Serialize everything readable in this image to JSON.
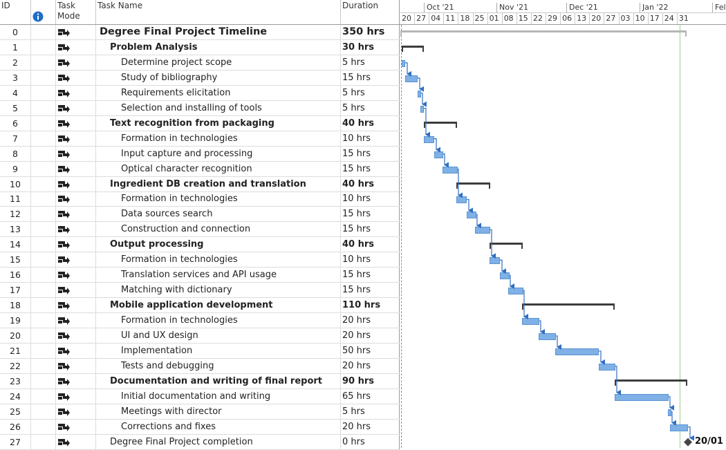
{
  "columns": {
    "id": "ID",
    "info_icon": "info-icon",
    "mode": "Task Mode",
    "name": "Task Name",
    "duration": "Duration"
  },
  "timescale": {
    "top": [
      "Oct '21",
      "Nov '21",
      "Dec '21",
      "Jan '22",
      "Fel"
    ],
    "bottom": [
      "20",
      "27",
      "04",
      "11",
      "18",
      "25",
      "01",
      "08",
      "15",
      "22",
      "29",
      "06",
      "13",
      "20",
      "27",
      "03",
      "10",
      "17",
      "24",
      "31"
    ]
  },
  "tasks": [
    {
      "id": "0",
      "name": "Degree Final Project Timeline",
      "duration": "350 hrs",
      "level": 0,
      "summary": true,
      "start": 0,
      "end": 414
    },
    {
      "id": "1",
      "name": "Problem Analysis",
      "duration": "30 hrs",
      "level": 1,
      "summary": true,
      "start": 2,
      "end": 34
    },
    {
      "id": "2",
      "name": "Determine project scope",
      "duration": "5 hrs",
      "level": 2,
      "summary": false,
      "start": 2,
      "end": 7
    },
    {
      "id": "3",
      "name": "Study of bibliography",
      "duration": "15 hrs",
      "level": 2,
      "summary": false,
      "start": 7,
      "end": 25
    },
    {
      "id": "4",
      "name": "Requirements elicitation",
      "duration": "5 hrs",
      "level": 2,
      "summary": false,
      "start": 25,
      "end": 30
    },
    {
      "id": "5",
      "name": "Selection and installing of tools",
      "duration": "5 hrs",
      "level": 2,
      "summary": false,
      "start": 29,
      "end": 34
    },
    {
      "id": "6",
      "name": "Text recognition from packaging",
      "duration": "40 hrs",
      "level": 1,
      "summary": true,
      "start": 34,
      "end": 82
    },
    {
      "id": "7",
      "name": "Formation in technologies",
      "duration": "10 hrs",
      "level": 2,
      "summary": false,
      "start": 34,
      "end": 49
    },
    {
      "id": "8",
      "name": "Input capture and processing",
      "duration": "15 hrs",
      "level": 2,
      "summary": false,
      "start": 49,
      "end": 62
    },
    {
      "id": "9",
      "name": "Optical character recognition",
      "duration": "15 hrs",
      "level": 2,
      "summary": false,
      "start": 61,
      "end": 83
    },
    {
      "id": "10",
      "name": "Ingredient DB creation and translation",
      "duration": "40 hrs",
      "level": 1,
      "summary": true,
      "start": 81,
      "end": 130
    },
    {
      "id": "11",
      "name": "Formation in technologies",
      "duration": "10 hrs",
      "level": 2,
      "summary": false,
      "start": 81,
      "end": 96
    },
    {
      "id": "12",
      "name": "Data sources search",
      "duration": "15 hrs",
      "level": 2,
      "summary": false,
      "start": 96,
      "end": 110
    },
    {
      "id": "13",
      "name": "Construction and connection",
      "duration": "15 hrs",
      "level": 2,
      "summary": false,
      "start": 108,
      "end": 130
    },
    {
      "id": "14",
      "name": "Output processing",
      "duration": "40 hrs",
      "level": 1,
      "summary": true,
      "start": 129,
      "end": 177
    },
    {
      "id": "15",
      "name": "Formation in technologies",
      "duration": "10 hrs",
      "level": 2,
      "summary": false,
      "start": 129,
      "end": 144
    },
    {
      "id": "16",
      "name": "Translation services and API usage",
      "duration": "15 hrs",
      "level": 2,
      "summary": false,
      "start": 144,
      "end": 158
    },
    {
      "id": "17",
      "name": "Matching with dictionary",
      "duration": "15 hrs",
      "level": 2,
      "summary": false,
      "start": 156,
      "end": 178
    },
    {
      "id": "18",
      "name": "Mobile application development",
      "duration": "110 hrs",
      "level": 1,
      "summary": true,
      "start": 176,
      "end": 310
    },
    {
      "id": "19",
      "name": "Formation in technologies",
      "duration": "20 hrs",
      "level": 2,
      "summary": false,
      "start": 176,
      "end": 201
    },
    {
      "id": "20",
      "name": "UI and UX design",
      "duration": "20 hrs",
      "level": 2,
      "summary": false,
      "start": 200,
      "end": 225
    },
    {
      "id": "21",
      "name": "Implementation",
      "duration": "50 hrs",
      "level": 2,
      "summary": false,
      "start": 224,
      "end": 287
    },
    {
      "id": "22",
      "name": "Tests and debugging",
      "duration": "20 hrs",
      "level": 2,
      "summary": false,
      "start": 287,
      "end": 311
    },
    {
      "id": "23",
      "name": "Documentation and writing of final report",
      "duration": "90 hrs",
      "level": 1,
      "summary": true,
      "start": 310,
      "end": 415
    },
    {
      "id": "24",
      "name": "Initial documentation and writing",
      "duration": "65 hrs",
      "level": 2,
      "summary": false,
      "start": 310,
      "end": 388
    },
    {
      "id": "25",
      "name": "Meetings with director",
      "duration": "5 hrs",
      "level": 2,
      "summary": false,
      "start": 387,
      "end": 392
    },
    {
      "id": "26",
      "name": "Corrections and fixes",
      "duration": "20 hrs",
      "level": 2,
      "summary": false,
      "start": 390,
      "end": 416
    },
    {
      "id": "27",
      "name": "Degree Final Project completion",
      "duration": "0 hrs",
      "level": 1,
      "summary": false,
      "milestone": true,
      "start": 416,
      "end": 416
    }
  ],
  "milestone_label": "20/01",
  "colors": {
    "bar": "#7fb0e6",
    "bar_border": "#5a93d2",
    "summary": "#3c3c3c",
    "link": "#2f6fc1",
    "status_line": "#9fcd8c"
  }
}
